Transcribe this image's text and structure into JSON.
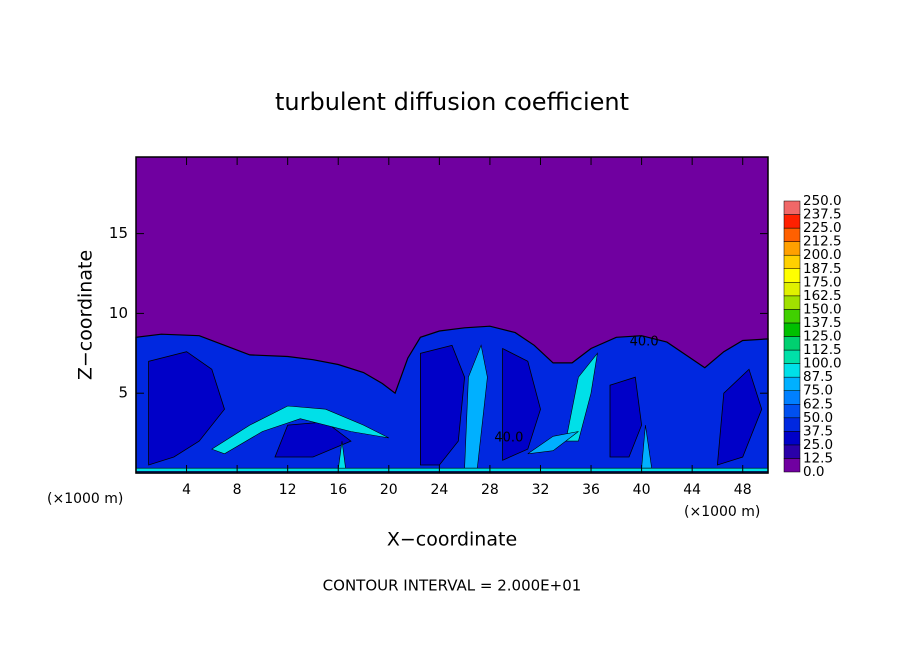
{
  "chart_data": {
    "type": "contour",
    "title": "turbulent diffusion coefficient",
    "x_label": "X−coordinate",
    "y_label": "Z−coordinate",
    "x_unit_label": "(×1000 m)",
    "y_unit_label": "(×1000 m)",
    "footer": "CONTOUR INTERVAL = 2.000E+01",
    "contour_labels": [
      "40.0",
      "40.0"
    ],
    "xlim": [
      0,
      50
    ],
    "ylim": [
      0,
      19.8
    ],
    "xticks": [
      4,
      8,
      12,
      16,
      20,
      24,
      28,
      32,
      36,
      40,
      44,
      48
    ],
    "yticks": [
      5,
      10,
      15
    ],
    "colorbar": {
      "levels": [
        {
          "value": 0,
          "label": "0.0"
        },
        {
          "value": 12.5,
          "label": "12.5"
        },
        {
          "value": 25,
          "label": "25.0"
        },
        {
          "value": 37.5,
          "label": "37.5"
        },
        {
          "value": 50,
          "label": "50.0"
        },
        {
          "value": 62.5,
          "label": "62.5"
        },
        {
          "value": 75,
          "label": "75.0"
        },
        {
          "value": 87.5,
          "label": "87.5"
        },
        {
          "value": 100,
          "label": "100.0"
        },
        {
          "value": 112.5,
          "label": "112.5"
        },
        {
          "value": 125,
          "label": "125.0"
        },
        {
          "value": 137.5,
          "label": "137.5"
        },
        {
          "value": 150,
          "label": "150.0"
        },
        {
          "value": 162.5,
          "label": "162.5"
        },
        {
          "value": 175,
          "label": "175.0"
        },
        {
          "value": 187.5,
          "label": "187.5"
        },
        {
          "value": 200,
          "label": "200.0"
        },
        {
          "value": 212.5,
          "label": "212.5"
        },
        {
          "value": 225,
          "label": "225.0"
        },
        {
          "value": 237.5,
          "label": "237.5"
        },
        {
          "value": 250,
          "label": "250.0"
        }
      ],
      "colors": [
        "#7000a0",
        "#2a00a8",
        "#0000c8",
        "#0028e0",
        "#0050f0",
        "#0080ff",
        "#00b0ff",
        "#00e0e8",
        "#00e0a8",
        "#00d070",
        "#00c000",
        "#40d000",
        "#a0e000",
        "#e0f000",
        "#ffff00",
        "#ffd000",
        "#ffa000",
        "#ff6000",
        "#ff2000",
        "#f06868"
      ]
    }
  }
}
